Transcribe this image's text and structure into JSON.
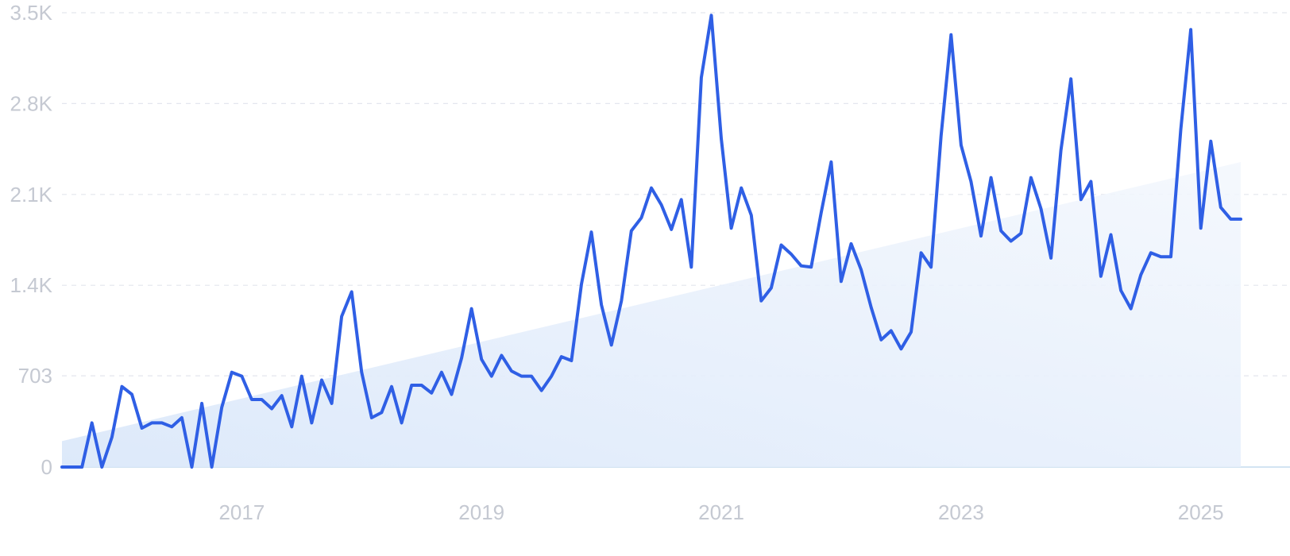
{
  "chart_data": {
    "type": "line",
    "title": "",
    "xlabel": "",
    "ylabel": "",
    "x_start": "2015-07",
    "x_step": "month",
    "ylim": [
      0,
      3500
    ],
    "y_ticks": [
      {
        "value": 0,
        "label": "0"
      },
      {
        "value": 703,
        "label": "703"
      },
      {
        "value": 1400,
        "label": "1.4K"
      },
      {
        "value": 2100,
        "label": "2.1K"
      },
      {
        "value": 2800,
        "label": "2.8K"
      },
      {
        "value": 3500,
        "label": "3.5K"
      }
    ],
    "x_ticks": [
      {
        "label": "2017",
        "month": "2017-01"
      },
      {
        "label": "2019",
        "month": "2019-01"
      },
      {
        "label": "2021",
        "month": "2021-01"
      },
      {
        "label": "2023",
        "month": "2023-01"
      },
      {
        "label": "2025",
        "month": "2025-01"
      }
    ],
    "grid": true,
    "series": [
      {
        "color": "#2f5fe5",
        "values": [
          0,
          0,
          0,
          340,
          0,
          230,
          620,
          560,
          300,
          340,
          340,
          310,
          380,
          0,
          490,
          0,
          460,
          730,
          700,
          520,
          520,
          450,
          550,
          310,
          700,
          340,
          670,
          490,
          1160,
          1350,
          730,
          380,
          420,
          620,
          340,
          630,
          630,
          570,
          730,
          560,
          840,
          1220,
          830,
          700,
          860,
          740,
          700,
          700,
          590,
          700,
          850,
          820,
          1410,
          1810,
          1250,
          940,
          1280,
          1820,
          1920,
          2150,
          2020,
          1830,
          2060,
          1540,
          3000,
          3480,
          2530,
          1840,
          2150,
          1940,
          1280,
          1380,
          1710,
          1640,
          1550,
          1540,
          1960,
          2350,
          1430,
          1720,
          1520,
          1230,
          980,
          1050,
          910,
          1040,
          1650,
          1540,
          2550,
          3330,
          2480,
          2200,
          1780,
          2230,
          1820,
          1740,
          1800,
          2230,
          1990,
          1610,
          2440,
          2990,
          2060,
          2200,
          1470,
          1790,
          1360,
          1220,
          1480,
          1650,
          1620,
          1620,
          2600,
          3370,
          1840,
          2510,
          2000,
          1910,
          1910
        ]
      }
    ],
    "trend": {
      "start": 200,
      "end": 2350,
      "color": "#dbe8fa"
    }
  }
}
